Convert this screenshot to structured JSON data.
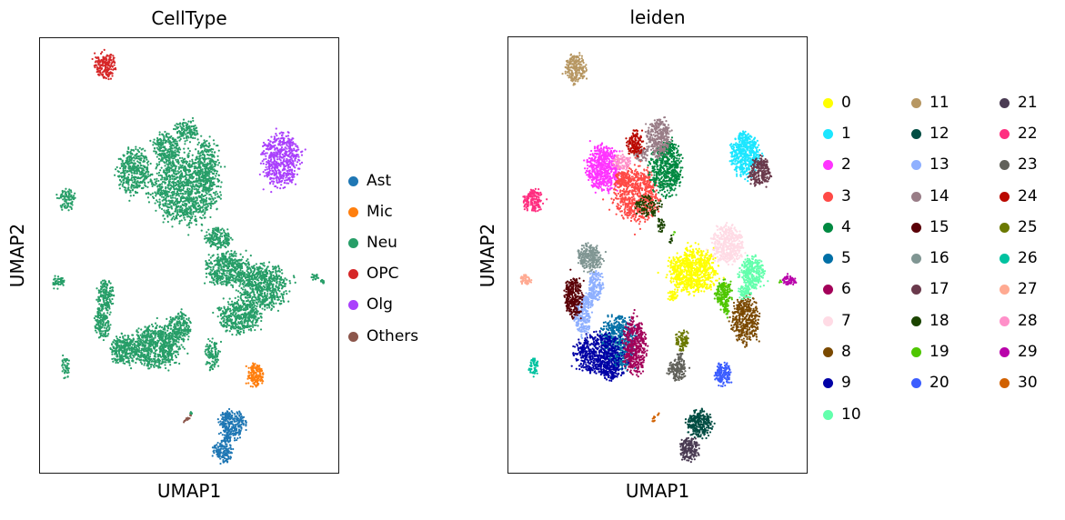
{
  "figure": {
    "background": "#ffffff",
    "text_color": "#000000",
    "spine_color": "#1a1a1a",
    "marker": "dot",
    "coords_note": "blob format [cx,cy,rx,ry,n,rot] in percent of axes box, x right, y down"
  },
  "chart_data": [
    {
      "type": "scatter",
      "title": "CellType",
      "xlabel": "UMAP1",
      "ylabel": "UMAP2",
      "ticks": "none",
      "grid": false,
      "legend_position": "right-of-axes",
      "legend_columns": [
        6
      ],
      "series": [
        {
          "name": "Ast",
          "color": "#1f77b4",
          "blobs": [
            [
              64.5,
              88.8,
              4.2,
              3.3,
              260
            ],
            [
              61.2,
              95.0,
              3.3,
              2.5,
              130
            ],
            [
              62.7,
              92.3,
              1.2,
              1.3,
              30
            ]
          ]
        },
        {
          "name": "Mic",
          "color": "#ff7f0e",
          "blobs": [
            [
              72.1,
              77.5,
              2.7,
              2.5,
              160
            ]
          ]
        },
        {
          "name": "Neu",
          "color": "#279e68",
          "blobs": [
            [
              49.1,
              21.3,
              3.9,
              2.3,
              140
            ],
            [
              42.4,
              25.0,
              4.2,
              3.3,
              220
            ],
            [
              31.5,
              30.6,
              5.2,
              5.2,
              400
            ],
            [
              48.5,
              34.6,
              10.9,
              7.9,
              1100
            ],
            [
              56.1,
              29.0,
              3.6,
              5.8,
              250
            ],
            [
              8.8,
              37.1,
              3.0,
              2.5,
              90
            ],
            [
              6.1,
              56.0,
              1.8,
              1.5,
              45
            ],
            [
              21.8,
              59.2,
              2.7,
              3.3,
              160
            ],
            [
              20.9,
              65.4,
              2.4,
              3.8,
              160
            ],
            [
              27.9,
              71.7,
              4.2,
              3.3,
              260
            ],
            [
              38.5,
              71.0,
              8.5,
              4.6,
              700
            ],
            [
              46.4,
              66.5,
              4.2,
              3.3,
              220
            ],
            [
              63.0,
              53.1,
              6.7,
              3.8,
              450
            ],
            [
              74.8,
              57.1,
              7.9,
              5.0,
              650
            ],
            [
              67.0,
              64.0,
              6.7,
              3.8,
              420
            ],
            [
              59.7,
              46.0,
              4.2,
              2.5,
              180
            ],
            [
              57.9,
              72.7,
              2.4,
              3.5,
              110
            ],
            [
              8.5,
              75.6,
              1.5,
              2.7,
              45
            ],
            [
              92.1,
              55.0,
              1.2,
              0.8,
              18
            ],
            [
              95.2,
              56.0,
              1.2,
              0.6,
              12
            ],
            [
              50.6,
              86.3,
              0.6,
              0.6,
              5
            ]
          ]
        },
        {
          "name": "OPC",
          "color": "#d62728",
          "blobs": [
            [
              21.8,
              6.3,
              3.3,
              2.9,
              200
            ]
          ]
        },
        {
          "name": "Olg",
          "color": "#aa40fc",
          "blobs": [
            [
              80.6,
              28.1,
              6.4,
              6.0,
              550
            ]
          ]
        },
        {
          "name": "Others",
          "color": "#8c564b",
          "blobs": [
            [
              49.7,
              87.5,
              0.5,
              1.3,
              12,
              45
            ]
          ]
        }
      ]
    },
    {
      "type": "scatter",
      "title": "leiden",
      "xlabel": "UMAP1",
      "ylabel": "UMAP2",
      "ticks": "none",
      "grid": false,
      "legend_position": "right-of-axes",
      "legend_columns": [
        11,
        10,
        10
      ],
      "series": [
        {
          "name": "0",
          "color": "#FFFF00",
          "blobs": [
            [
              61.8,
              53.6,
              8.2,
              5.0,
              800
            ],
            [
              55.2,
              59.3,
              1.8,
              1.2,
              40
            ]
          ]
        },
        {
          "name": "1",
          "color": "#1CE6FF",
          "blobs": [
            [
              79.7,
              27.2,
              4.8,
              5.0,
              480
            ],
            [
              78.8,
              22.9,
              1.8,
              1.2,
              40
            ]
          ]
        },
        {
          "name": "2",
          "color": "#FF34FF",
          "blobs": [
            [
              31.8,
              30.1,
              5.5,
              5.0,
              600
            ]
          ]
        },
        {
          "name": "3",
          "color": "#FF4A46",
          "blobs": [
            [
              43.0,
              36.2,
              7.3,
              6.0,
              700
            ],
            [
              37.9,
              32.4,
              2.4,
              1.7,
              80
            ]
          ]
        },
        {
          "name": "4",
          "color": "#008941",
          "blobs": [
            [
              52.7,
              30.6,
              5.2,
              5.6,
              520
            ],
            [
              54.2,
              25.4,
              2.4,
              1.9,
              70
            ]
          ]
        },
        {
          "name": "5",
          "color": "#006FA6",
          "blobs": [
            [
              37.0,
              70.1,
              5.8,
              6.0,
              600
            ]
          ]
        },
        {
          "name": "6",
          "color": "#A30059",
          "blobs": [
            [
              42.4,
              70.9,
              3.9,
              6.4,
              420
            ]
          ]
        },
        {
          "name": "7",
          "color": "#FFDBE5",
          "blobs": [
            [
              73.6,
              47.8,
              5.2,
              4.4,
              420
            ]
          ]
        },
        {
          "name": "8",
          "color": "#7A4900",
          "blobs": [
            [
              79.4,
              64.9,
              4.5,
              5.2,
              400
            ]
          ]
        },
        {
          "name": "9",
          "color": "#0000A6",
          "blobs": [
            [
              30.0,
              72.6,
              7.6,
              4.4,
              600
            ],
            [
              34.5,
              76.9,
              3.6,
              1.7,
              120
            ]
          ]
        },
        {
          "name": "10",
          "color": "#63FFAC",
          "blobs": [
            [
              81.5,
              54.1,
              3.9,
              3.7,
              300
            ],
            [
              79.4,
              58.6,
              2.1,
              1.7,
              70
            ]
          ]
        },
        {
          "name": "11",
          "color": "#B79762",
          "blobs": [
            [
              22.4,
              7.3,
              3.3,
              3.1,
              220
            ]
          ]
        },
        {
          "name": "12",
          "color": "#004D43",
          "blobs": [
            [
              64.2,
              88.8,
              4.2,
              3.1,
              280
            ]
          ]
        },
        {
          "name": "13",
          "color": "#8FB0FF",
          "blobs": [
            [
              29.4,
              56.8,
              2.4,
              3.1,
              160
            ],
            [
              24.8,
              64.0,
              2.7,
              4.2,
              220
            ],
            [
              27.3,
              60.3,
              1.8,
              1.7,
              60
            ]
          ]
        },
        {
          "name": "14",
          "color": "#997D87",
          "blobs": [
            [
              50.3,
              23.1,
              3.9,
              4.2,
              320
            ],
            [
              44.5,
              27.0,
              2.4,
              1.5,
              60
            ]
          ]
        },
        {
          "name": "15",
          "color": "#5A0007",
          "blobs": [
            [
              21.8,
              59.7,
              3.0,
              4.8,
              300
            ]
          ]
        },
        {
          "name": "16",
          "color": "#809693",
          "blobs": [
            [
              27.3,
              50.7,
              3.9,
              3.1,
              260
            ]
          ]
        },
        {
          "name": "17",
          "color": "#6A3A4C",
          "blobs": [
            [
              84.2,
              30.8,
              3.6,
              3.1,
              240
            ]
          ]
        },
        {
          "name": "18",
          "color": "#1B4400",
          "blobs": [
            [
              46.7,
              38.7,
              4.5,
              2.3,
              100
            ],
            [
              51.2,
              43.0,
              1.2,
              1.7,
              30
            ],
            [
              54.5,
              46.4,
              0.6,
              1.0,
              10
            ]
          ]
        },
        {
          "name": "19",
          "color": "#4FC601",
          "blobs": [
            [
              72.1,
              58.8,
              2.7,
              2.9,
              180
            ],
            [
              73.0,
              62.8,
              0.9,
              1.2,
              25
            ],
            [
              90.9,
              56.1,
              0.6,
              0.4,
              4
            ],
            [
              55.5,
              44.9,
              0.5,
              0.4,
              3
            ]
          ]
        },
        {
          "name": "20",
          "color": "#3B5DFF",
          "blobs": [
            [
              72.1,
              77.3,
              2.7,
              2.5,
              160
            ]
          ]
        },
        {
          "name": "21",
          "color": "#4A3B53",
          "blobs": [
            [
              60.6,
              94.6,
              3.0,
              2.7,
              180
            ]
          ]
        },
        {
          "name": "22",
          "color": "#FF2F80",
          "blobs": [
            [
              8.2,
              37.4,
              3.3,
              2.5,
              170
            ]
          ]
        },
        {
          "name": "23",
          "color": "#61615A",
          "blobs": [
            [
              56.7,
              76.3,
              3.0,
              2.3,
              150
            ],
            [
              57.6,
              72.8,
              0.9,
              1.5,
              25
            ]
          ]
        },
        {
          "name": "24",
          "color": "#BA0900",
          "blobs": [
            [
              42.4,
              24.5,
              2.7,
              2.7,
              140
            ]
          ]
        },
        {
          "name": "25",
          "color": "#6B7900",
          "blobs": [
            [
              58.2,
              69.4,
              2.1,
              2.3,
              90
            ]
          ]
        },
        {
          "name": "26",
          "color": "#00C2A0",
          "blobs": [
            [
              8.5,
              75.7,
              1.5,
              2.1,
              50
            ]
          ]
        },
        {
          "name": "27",
          "color": "#FFAA92",
          "blobs": [
            [
              5.8,
              55.7,
              2.1,
              1.2,
              55
            ]
          ]
        },
        {
          "name": "28",
          "color": "#FF90C9",
          "blobs": [
            [
              37.9,
              28.7,
              3.0,
              1.7,
              110
            ]
          ]
        },
        {
          "name": "29",
          "color": "#B903AA",
          "blobs": [
            [
              94.2,
              55.9,
              2.1,
              1.2,
              60
            ]
          ]
        },
        {
          "name": "30",
          "color": "#D16100",
          "blobs": [
            [
              49.4,
              87.3,
              0.6,
              1.2,
              12,
              45
            ]
          ]
        }
      ]
    }
  ]
}
